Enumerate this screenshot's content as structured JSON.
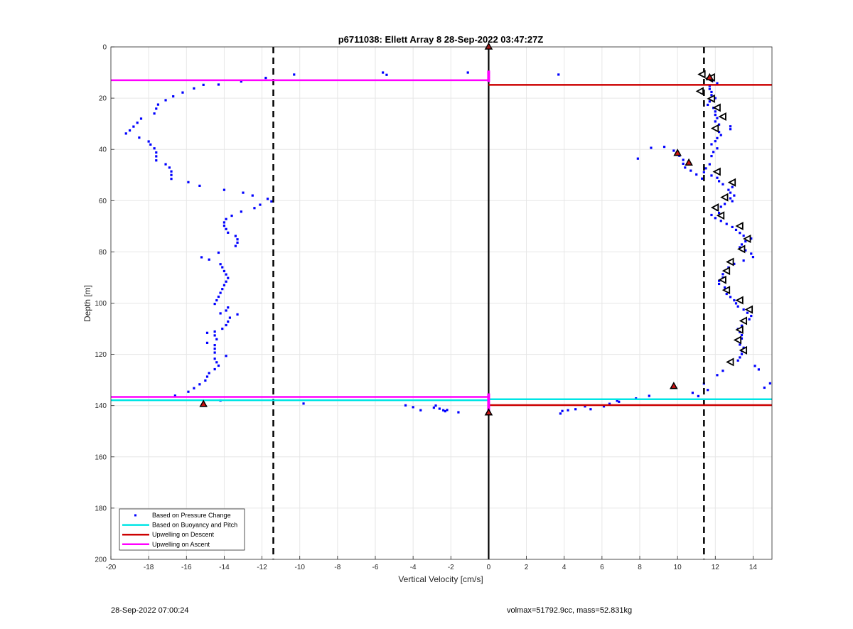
{
  "chart_data": {
    "type": "scatter",
    "title": "p6711038: Ellett Array 8 28-Sep-2022 03:47:27Z",
    "xlabel": "Vertical Velocity [cm/s]",
    "ylabel": "Depth [m]",
    "xlim": [
      -20,
      15
    ],
    "ylim": [
      0,
      200
    ],
    "y_reversed": true,
    "grid": true,
    "x_ticks": [
      -20,
      -18,
      -16,
      -14,
      -12,
      -10,
      -8,
      -6,
      -4,
      -2,
      0,
      2,
      4,
      6,
      8,
      10,
      12,
      14
    ],
    "y_ticks": [
      0,
      20,
      40,
      60,
      80,
      100,
      120,
      140,
      160,
      180,
      200
    ],
    "legend_position": "bottom-left",
    "legend": [
      {
        "label": "Based on Pressure Change",
        "color": "#0000ff",
        "style": "dot"
      },
      {
        "label": "Based on Buoyancy and Pitch",
        "color": "#00e5e5",
        "style": "line"
      },
      {
        "label": "Upwelling on Descent",
        "color": "#cc0000",
        "style": "line"
      },
      {
        "label": "Upwelling on Ascent",
        "color": "#ff00ff",
        "style": "line"
      }
    ],
    "pressure_change_points": [
      [
        -15.1,
        14.8
      ],
      [
        -15.6,
        16.2
      ],
      [
        -16.2,
        17.8
      ],
      [
        -16.7,
        19.3
      ],
      [
        -17.1,
        20.8
      ],
      [
        -17.5,
        22.5
      ],
      [
        -17.6,
        24.1
      ],
      [
        -17.7,
        26.0
      ],
      [
        -18.4,
        28.0
      ],
      [
        -18.6,
        29.6
      ],
      [
        -18.8,
        31.1
      ],
      [
        -19.0,
        32.6
      ],
      [
        -19.2,
        33.8
      ],
      [
        -18.5,
        35.4
      ],
      [
        -18.0,
        36.9
      ],
      [
        -17.9,
        38.1
      ],
      [
        -17.7,
        39.6
      ],
      [
        -17.6,
        41.2
      ],
      [
        -17.6,
        42.7
      ],
      [
        -17.6,
        44.3
      ],
      [
        -17.1,
        45.8
      ],
      [
        -16.9,
        47.1
      ],
      [
        -16.8,
        48.6
      ],
      [
        -16.8,
        50.0
      ],
      [
        -16.8,
        51.5
      ],
      [
        -15.9,
        52.8
      ],
      [
        -15.3,
        54.2
      ],
      [
        -14.0,
        55.8
      ],
      [
        -13.0,
        56.9
      ],
      [
        -12.5,
        58.0
      ],
      [
        -11.7,
        59.3
      ],
      [
        -11.5,
        60.3
      ],
      [
        -12.1,
        61.6
      ],
      [
        -12.4,
        62.9
      ],
      [
        -13.1,
        64.3
      ],
      [
        -13.6,
        65.9
      ],
      [
        -13.9,
        67.2
      ],
      [
        -14.0,
        68.5
      ],
      [
        -14.0,
        69.8
      ],
      [
        -13.9,
        71.1
      ],
      [
        -13.8,
        72.5
      ],
      [
        -13.4,
        73.8
      ],
      [
        -13.3,
        75.1
      ],
      [
        -13.3,
        76.4
      ],
      [
        -13.4,
        77.7
      ],
      [
        -14.3,
        80.3
      ],
      [
        -15.2,
        82.1
      ],
      [
        -14.8,
        83.0
      ],
      [
        -14.2,
        84.8
      ],
      [
        -14.1,
        86.0
      ],
      [
        -14.0,
        87.5
      ],
      [
        -13.9,
        88.8
      ],
      [
        -13.8,
        90.2
      ],
      [
        -13.9,
        91.6
      ],
      [
        -14.0,
        93.0
      ],
      [
        -14.1,
        94.5
      ],
      [
        -14.2,
        96.0
      ],
      [
        -14.3,
        97.5
      ],
      [
        -14.4,
        98.9
      ],
      [
        -14.5,
        100.3
      ],
      [
        -13.8,
        101.7
      ],
      [
        -13.9,
        102.9
      ],
      [
        -14.2,
        104.0
      ],
      [
        -13.3,
        104.4
      ],
      [
        -13.7,
        105.7
      ],
      [
        -13.8,
        107.2
      ],
      [
        -13.9,
        108.6
      ],
      [
        -14.1,
        110.0
      ],
      [
        -14.5,
        111.1
      ],
      [
        -14.9,
        111.6
      ],
      [
        -14.5,
        112.6
      ],
      [
        -14.4,
        114.1
      ],
      [
        -14.9,
        115.5
      ],
      [
        -14.5,
        116.4
      ],
      [
        -14.5,
        117.8
      ],
      [
        -14.5,
        119.3
      ],
      [
        -13.9,
        120.6
      ],
      [
        -14.5,
        121.7
      ],
      [
        -14.4,
        123.1
      ],
      [
        -14.3,
        124.4
      ],
      [
        -14.5,
        125.8
      ],
      [
        -14.8,
        127.3
      ],
      [
        -14.9,
        128.7
      ],
      [
        -15.0,
        130.2
      ],
      [
        -15.3,
        131.7
      ],
      [
        -15.6,
        133.2
      ],
      [
        -15.9,
        134.6
      ],
      [
        -16.6,
        136.1
      ],
      [
        -14.2,
        138.0
      ],
      [
        -10.3,
        10.8
      ],
      [
        -11.8,
        12.1
      ],
      [
        -13.1,
        13.5
      ],
      [
        -14.3,
        14.7
      ],
      [
        -5.6,
        10.0
      ],
      [
        -5.4,
        10.9
      ],
      [
        -1.1,
        10.0
      ],
      [
        3.7,
        10.8
      ],
      [
        11.7,
        11.8
      ],
      [
        11.9,
        13.0
      ],
      [
        12.1,
        14.2
      ],
      [
        11.7,
        15.2
      ],
      [
        11.7,
        16.4
      ],
      [
        11.8,
        17.6
      ],
      [
        11.8,
        18.8
      ],
      [
        12.0,
        20.0
      ],
      [
        11.7,
        21.3
      ],
      [
        11.6,
        22.6
      ],
      [
        11.9,
        23.8
      ],
      [
        12.0,
        25.2
      ],
      [
        12.0,
        26.5
      ],
      [
        12.1,
        27.8
      ],
      [
        12.0,
        29.1
      ],
      [
        12.2,
        30.3
      ],
      [
        12.8,
        31.0
      ],
      [
        12.8,
        32.1
      ],
      [
        12.2,
        33.2
      ],
      [
        12.3,
        34.4
      ],
      [
        12.1,
        35.6
      ],
      [
        12.0,
        36.8
      ],
      [
        11.8,
        38.0
      ],
      [
        9.3,
        39.0
      ],
      [
        8.6,
        39.4
      ],
      [
        12.1,
        39.6
      ],
      [
        9.8,
        40.5
      ],
      [
        11.9,
        41.0
      ],
      [
        10.1,
        42.5
      ],
      [
        11.8,
        42.6
      ],
      [
        7.9,
        43.6
      ],
      [
        10.3,
        44.1
      ],
      [
        10.3,
        45.6
      ],
      [
        11.7,
        45.8
      ],
      [
        10.4,
        47.1
      ],
      [
        11.5,
        47.4
      ],
      [
        10.7,
        48.3
      ],
      [
        11.4,
        48.9
      ],
      [
        11.0,
        49.8
      ],
      [
        11.8,
        50.2
      ],
      [
        12.1,
        51.1
      ],
      [
        11.3,
        51.4
      ],
      [
        12.2,
        52.4
      ],
      [
        12.4,
        53.6
      ],
      [
        12.9,
        54.7
      ],
      [
        12.7,
        55.8
      ],
      [
        12.8,
        56.9
      ],
      [
        13.0,
        58.0
      ],
      [
        12.8,
        59.1
      ],
      [
        12.9,
        60.2
      ],
      [
        12.5,
        61.3
      ],
      [
        12.3,
        62.4
      ],
      [
        12.1,
        63.6
      ],
      [
        12.2,
        64.8
      ],
      [
        11.8,
        65.6
      ],
      [
        12.0,
        66.8
      ],
      [
        12.3,
        67.9
      ],
      [
        12.6,
        69.1
      ],
      [
        12.9,
        70.3
      ],
      [
        13.1,
        71.4
      ],
      [
        13.3,
        72.6
      ],
      [
        13.5,
        73.7
      ],
      [
        13.9,
        74.8
      ],
      [
        13.6,
        75.9
      ],
      [
        13.4,
        77.1
      ],
      [
        13.3,
        78.2
      ],
      [
        13.6,
        79.4
      ],
      [
        13.9,
        80.7
      ],
      [
        14.0,
        82.0
      ],
      [
        13.5,
        83.4
      ],
      [
        13.0,
        84.7
      ],
      [
        12.7,
        86.1
      ],
      [
        12.5,
        87.4
      ],
      [
        12.4,
        88.7
      ],
      [
        12.4,
        90.0
      ],
      [
        12.2,
        91.3
      ],
      [
        12.2,
        92.5
      ],
      [
        12.5,
        93.9
      ],
      [
        12.6,
        95.2
      ],
      [
        12.6,
        96.4
      ],
      [
        12.8,
        97.6
      ],
      [
        13.0,
        98.9
      ],
      [
        13.1,
        100.1
      ],
      [
        13.2,
        101.3
      ],
      [
        13.5,
        102.5
      ],
      [
        13.7,
        103.8
      ],
      [
        13.9,
        105.0
      ],
      [
        13.8,
        106.3
      ],
      [
        13.6,
        107.6
      ],
      [
        13.4,
        108.8
      ],
      [
        13.2,
        110.1
      ],
      [
        13.3,
        111.3
      ],
      [
        13.4,
        112.5
      ],
      [
        13.4,
        113.8
      ],
      [
        13.3,
        115.0
      ],
      [
        13.3,
        116.2
      ],
      [
        13.5,
        117.4
      ],
      [
        13.4,
        118.7
      ],
      [
        13.4,
        119.9
      ],
      [
        13.3,
        121.2
      ],
      [
        13.2,
        122.4
      ],
      [
        14.1,
        124.5
      ],
      [
        14.3,
        125.9
      ],
      [
        12.4,
        126.4
      ],
      [
        12.1,
        128.1
      ],
      [
        11.4,
        131.4
      ],
      [
        14.9,
        131.3
      ],
      [
        14.6,
        133.0
      ],
      [
        11.6,
        133.9
      ],
      [
        10.8,
        135.0
      ],
      [
        11.1,
        136.3
      ],
      [
        8.5,
        136.2
      ],
      [
        7.8,
        137.2
      ],
      [
        6.9,
        138.5
      ],
      [
        6.8,
        138.1
      ],
      [
        6.4,
        139.3
      ],
      [
        6.1,
        140.3
      ],
      [
        5.4,
        141.4
      ],
      [
        5.1,
        140.3
      ],
      [
        4.6,
        141.4
      ],
      [
        4.2,
        141.8
      ],
      [
        3.9,
        142.1
      ],
      [
        3.8,
        143.1
      ],
      [
        -9.8,
        139.2
      ],
      [
        -4.4,
        139.9
      ],
      [
        -4.0,
        140.6
      ],
      [
        -3.6,
        141.8
      ],
      [
        -2.9,
        140.8
      ],
      [
        -2.8,
        140.0
      ],
      [
        -2.6,
        141.2
      ],
      [
        -2.3,
        142.2
      ],
      [
        -2.2,
        141.7
      ],
      [
        -2.4,
        141.8
      ],
      [
        -1.6,
        142.6
      ]
    ],
    "triangle_markers": [
      [
        11.7,
        12.3
      ],
      [
        11.2,
        17.3
      ],
      [
        11.8,
        20.2
      ],
      [
        12.1,
        23.7
      ],
      [
        12.4,
        27.2
      ],
      [
        12.0,
        31.8
      ],
      [
        12.1,
        48.7
      ],
      [
        12.9,
        52.9
      ],
      [
        12.5,
        58.7
      ],
      [
        12.0,
        62.7
      ],
      [
        12.3,
        65.8
      ],
      [
        13.3,
        69.9
      ],
      [
        13.7,
        74.9
      ],
      [
        13.4,
        78.9
      ],
      [
        12.8,
        83.9
      ],
      [
        12.6,
        87.4
      ],
      [
        12.4,
        90.9
      ],
      [
        12.6,
        94.9
      ],
      [
        13.3,
        98.9
      ],
      [
        13.8,
        102.5
      ],
      [
        13.5,
        106.9
      ],
      [
        13.3,
        110.4
      ],
      [
        13.2,
        114.4
      ],
      [
        13.5,
        118.4
      ],
      [
        12.8,
        123.0
      ],
      [
        11.3,
        10.7
      ],
      [
        11.8,
        11.9
      ]
    ],
    "red_star_markers": [
      [
        0.0,
        0.0
      ],
      [
        11.7,
        12.0
      ],
      [
        10.0,
        41.5
      ],
      [
        10.6,
        45.3
      ],
      [
        9.8,
        132.5
      ],
      [
        -15.1,
        139.5
      ],
      [
        0.0,
        142.8
      ]
    ],
    "vertical_dashed_lines_x": [
      -11.4,
      11.4
    ],
    "zero_line_x": 0,
    "upwelling_on_ascent": [
      {
        "from_x": -20,
        "to_x": 0,
        "depth": 13.0
      },
      {
        "from_x": -20,
        "to_x": 0,
        "depth": 136.6
      }
    ],
    "upwelling_on_descent": [
      {
        "from_x": 0,
        "to_x": 15,
        "depth": 14.8
      },
      {
        "from_x": 0,
        "to_x": 15,
        "depth": 139.8
      }
    ],
    "buoyancy_and_pitch": [
      {
        "from_x": -20,
        "to_x": 0,
        "depth": 137.9
      },
      {
        "from_x": 0,
        "to_x": 15,
        "depth": 137.5
      }
    ],
    "ascent_marker_points": [
      [
        0.0,
        9.8
      ],
      [
        0.0,
        10.6
      ],
      [
        0.0,
        11.5
      ],
      [
        0.0,
        12.3
      ],
      [
        0.0,
        13.1
      ],
      [
        0.0,
        135.8
      ],
      [
        0.0,
        136.8
      ],
      [
        0.0,
        137.8
      ],
      [
        0.0,
        138.8
      ],
      [
        0.0,
        139.8
      ],
      [
        0.0,
        140.8
      ],
      [
        0.0,
        141.8
      ]
    ]
  },
  "footer": {
    "left": "28-Sep-2022 07:00:24",
    "right": "volmax=51792.9cc, mass=52.831kg"
  },
  "colors": {
    "pressure": "#0000ff",
    "buoyancy": "#00e5e5",
    "descent": "#cc0000",
    "ascent": "#ff00ff",
    "grid": "#e6e6e6",
    "axis": "#262626"
  }
}
